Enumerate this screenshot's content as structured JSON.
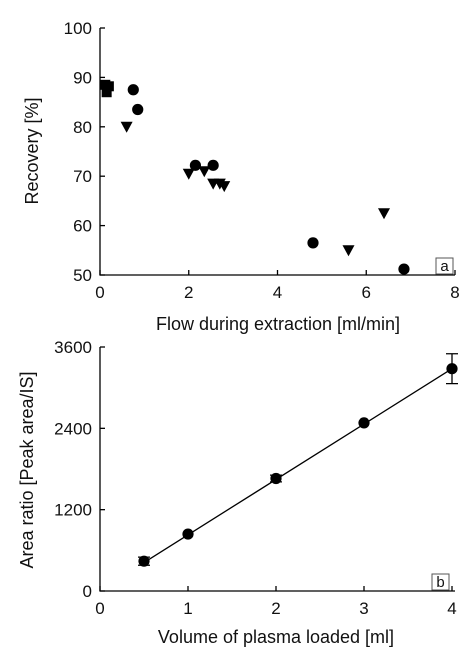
{
  "chart_data": [
    {
      "type": "scatter",
      "panel_label": "a",
      "xlabel": "Flow during extraction [ml/min]",
      "ylabel": "Recovery [%]",
      "xlim": [
        0,
        8
      ],
      "ylim": [
        50,
        100
      ],
      "x_ticks": [
        "0",
        "2",
        "4",
        "6",
        "8"
      ],
      "y_ticks": [
        "50",
        "60",
        "70",
        "80",
        "90",
        "100"
      ],
      "grid": false,
      "series": [
        {
          "marker": "circle",
          "points": [
            [
              0.75,
              87.5
            ],
            [
              0.85,
              83.5
            ],
            [
              2.15,
              72.2
            ],
            [
              2.55,
              72.2
            ],
            [
              4.8,
              56.5
            ],
            [
              6.85,
              51.2
            ]
          ]
        },
        {
          "marker": "square",
          "points": [
            [
              0.12,
              88.5
            ],
            [
              0.15,
              87.0
            ],
            [
              0.2,
              88.2
            ]
          ]
        },
        {
          "marker": "triangle-down",
          "points": [
            [
              0.6,
              80.0
            ],
            [
              2.0,
              70.5
            ],
            [
              2.35,
              71.0
            ],
            [
              2.55,
              68.5
            ],
            [
              2.7,
              68.5
            ],
            [
              2.8,
              68.0
            ],
            [
              5.6,
              55.0
            ],
            [
              6.4,
              62.5
            ]
          ]
        }
      ]
    },
    {
      "type": "scatter",
      "panel_label": "b",
      "xlabel": "Volume of plasma loaded [ml]",
      "ylabel": "Area ratio [Peak area/IS]",
      "xlim": [
        0,
        4
      ],
      "ylim": [
        0,
        3600
      ],
      "x_ticks": [
        "0",
        "1",
        "2",
        "3",
        "4"
      ],
      "y_ticks": [
        "0",
        "1200",
        "2400",
        "3600"
      ],
      "grid": false,
      "series": [
        {
          "marker": "circle",
          "points": [
            {
              "x": 0.5,
              "y": 440,
              "err": 60
            },
            {
              "x": 1,
              "y": 840,
              "err": 0
            },
            {
              "x": 2,
              "y": 1660,
              "err": 50
            },
            {
              "x": 3,
              "y": 2480,
              "err": 0
            },
            {
              "x": 4,
              "y": 3280,
              "err": 220
            }
          ]
        }
      ],
      "fit_line": {
        "x": [
          0.5,
          4
        ],
        "y": [
          420,
          3280
        ]
      }
    }
  ]
}
